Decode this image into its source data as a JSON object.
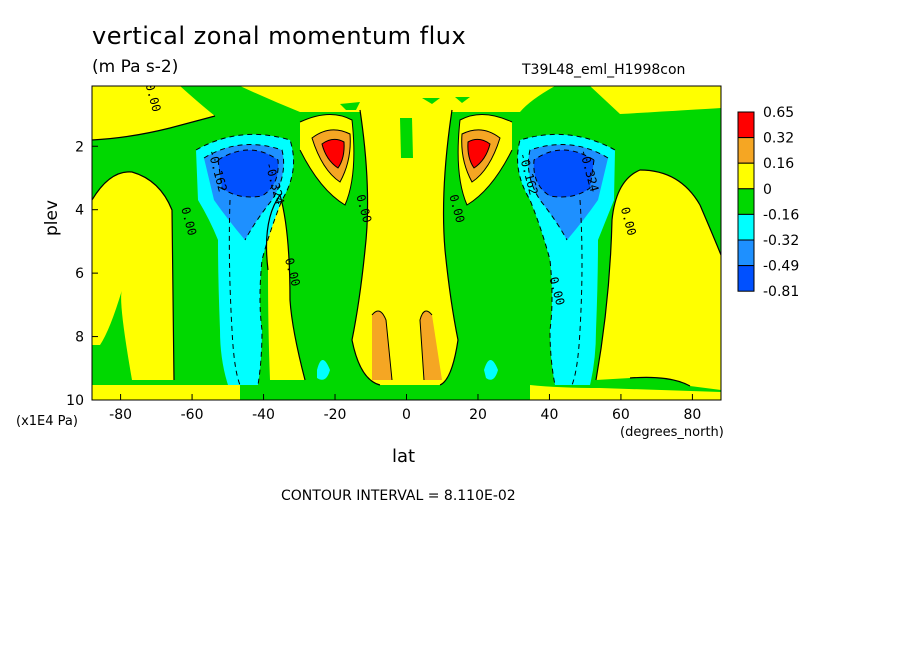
{
  "header": {
    "title": "vertical zonal momentum flux",
    "units": "(m Pa s-2)",
    "run_id": "T39L48_eml_H1998con",
    "footer": "CONTOUR INTERVAL = 8.110E-02"
  },
  "colors": {
    "red": "#ff0000",
    "orange": "#f5a623",
    "yellow": "#ffff00",
    "green": "#00d800",
    "cyan": "#00ffff",
    "mid_blue": "#1e90ff",
    "blue": "#0050ff"
  },
  "chart_data": {
    "type": "heatmap",
    "title": "vertical zonal momentum flux",
    "subtitle": "(m Pa s-2)",
    "xlabel": "lat",
    "xunit": "(degrees_north)",
    "ylabel": "plev",
    "yunit": "(x1E4 Pa)",
    "xlim": [
      -88,
      88
    ],
    "ylim": [
      10,
      0.1
    ],
    "xticks": [
      "-80",
      "-60",
      "-40",
      "-20",
      "0",
      "20",
      "40",
      "60",
      "80"
    ],
    "xtick_values": [
      -80,
      -60,
      -40,
      -20,
      0,
      20,
      40,
      60,
      80
    ],
    "yticks": [
      "2",
      "4",
      "6",
      "8",
      "10"
    ],
    "ytick_values": [
      2,
      4,
      6,
      8,
      10
    ],
    "legend": {
      "placement": "right",
      "boundaries": [
        "0.65",
        "0.32",
        "0.16",
        "0",
        "-0.16",
        "-0.32",
        "-0.49",
        "-0.81"
      ],
      "colors": [
        "#ff0000",
        "#f5a623",
        "#ffff00",
        "#00d800",
        "#00ffff",
        "#1e90ff",
        "#0050ff"
      ]
    },
    "contour_labels": [
      {
        "text": "0.00",
        "lat": -72,
        "plev": 0.5
      },
      {
        "text": "-0.162",
        "lat": -54,
        "plev": 2.8
      },
      {
        "text": "-0.324",
        "lat": -38,
        "plev": 3.2
      },
      {
        "text": "0.00",
        "lat": -62,
        "plev": 4.4
      },
      {
        "text": "0.00",
        "lat": -33,
        "plev": 6.0
      },
      {
        "text": "0.00",
        "lat": -13,
        "plev": 4.0
      },
      {
        "text": "0.00",
        "lat": 13,
        "plev": 4.0
      },
      {
        "text": "-0.162",
        "lat": 33,
        "plev": 2.9
      },
      {
        "text": "-0.324",
        "lat": 50,
        "plev": 2.8
      },
      {
        "text": "0.00",
        "lat": 61,
        "plev": 4.4
      },
      {
        "text": "0.00",
        "lat": 41,
        "plev": 6.6
      }
    ]
  }
}
